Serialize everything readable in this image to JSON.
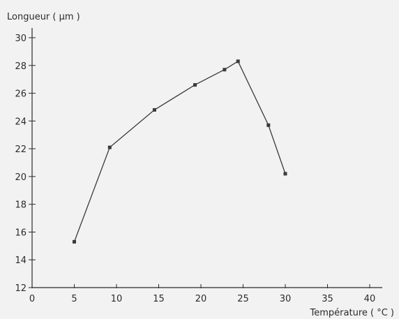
{
  "chart_data": {
    "type": "line",
    "title": "",
    "ylabel": "Longueur ( µm )",
    "xlabel": "Température ( °C )",
    "xlim": [
      0,
      40
    ],
    "ylim": [
      12,
      30
    ],
    "x_ticks": [
      0,
      5,
      10,
      15,
      20,
      25,
      30,
      35,
      40
    ],
    "y_ticks": [
      12,
      14,
      16,
      18,
      20,
      22,
      24,
      26,
      28,
      30
    ],
    "x_tick_labels": [
      "0",
      "5",
      "10",
      "15",
      "20",
      "25",
      "30",
      "35",
      "40"
    ],
    "y_tick_labels": [
      "12",
      "14",
      "16",
      "18",
      "20",
      "22",
      "24",
      "26",
      "28",
      "30"
    ],
    "grid": false,
    "series": [
      {
        "x": [
          5,
          9.2,
          14.5,
          19.3,
          22.8,
          24.4,
          28,
          30
        ],
        "y": [
          15.3,
          22.1,
          24.8,
          26.6,
          27.7,
          28.3,
          23.7,
          20.2
        ]
      }
    ]
  }
}
